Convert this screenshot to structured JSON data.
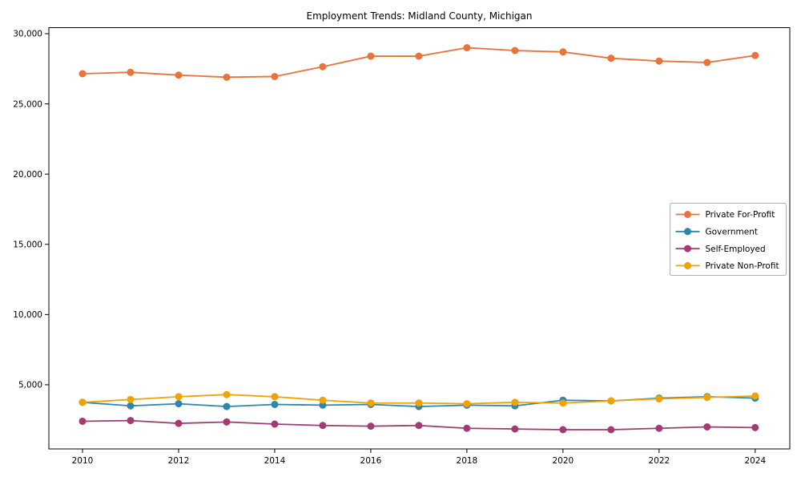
{
  "title": "Employment Trends: Midland County, Michigan",
  "chart_data": {
    "type": "line",
    "title": "Employment Trends: Midland County, Michigan",
    "x": [
      2010,
      2011,
      2012,
      2013,
      2014,
      2015,
      2016,
      2017,
      2018,
      2019,
      2020,
      2021,
      2022,
      2023,
      2024
    ],
    "series": [
      {
        "name": "Private For-Profit",
        "color": "#E8743B",
        "values": [
          27150,
          27250,
          27050,
          26900,
          26950,
          27650,
          28400,
          28400,
          29000,
          28800,
          28700,
          28250,
          28050,
          27950,
          28450
        ]
      },
      {
        "name": "Government",
        "color": "#2E86AB",
        "values": [
          3750,
          3500,
          3650,
          3450,
          3600,
          3550,
          3600,
          3450,
          3550,
          3500,
          3900,
          3850,
          4050,
          4150,
          4050
        ]
      },
      {
        "name": "Self-Employed",
        "color": "#A23B72",
        "values": [
          2400,
          2450,
          2250,
          2350,
          2200,
          2100,
          2050,
          2100,
          1900,
          1850,
          1800,
          1800,
          1900,
          2000,
          1950
        ]
      },
      {
        "name": "Private Non-Profit",
        "color": "#F0A202",
        "values": [
          3750,
          3950,
          4150,
          4300,
          4150,
          3900,
          3700,
          3700,
          3650,
          3750,
          3700,
          3850,
          4000,
          4100,
          4200
        ]
      }
    ],
    "xlim": [
      2009.3,
      2024.72
    ],
    "ylim": [
      430,
      30430
    ],
    "x_ticks": [
      2010,
      2012,
      2014,
      2016,
      2018,
      2020,
      2022,
      2024
    ],
    "x_tick_labels": [
      "2010",
      "2012",
      "2014",
      "2016",
      "2018",
      "2020",
      "2022",
      "2024"
    ],
    "y_ticks": [
      5000,
      10000,
      15000,
      20000,
      25000,
      30000
    ],
    "y_tick_labels": [
      "5,000",
      "10,000",
      "15,000",
      "20,000",
      "25,000",
      "30,000"
    ],
    "grid": false,
    "marker": "circle",
    "legend_position": "center-right",
    "axis_color": "#000000",
    "legend_border_color": "#b0b0b0",
    "background_color": "#ffffff"
  }
}
